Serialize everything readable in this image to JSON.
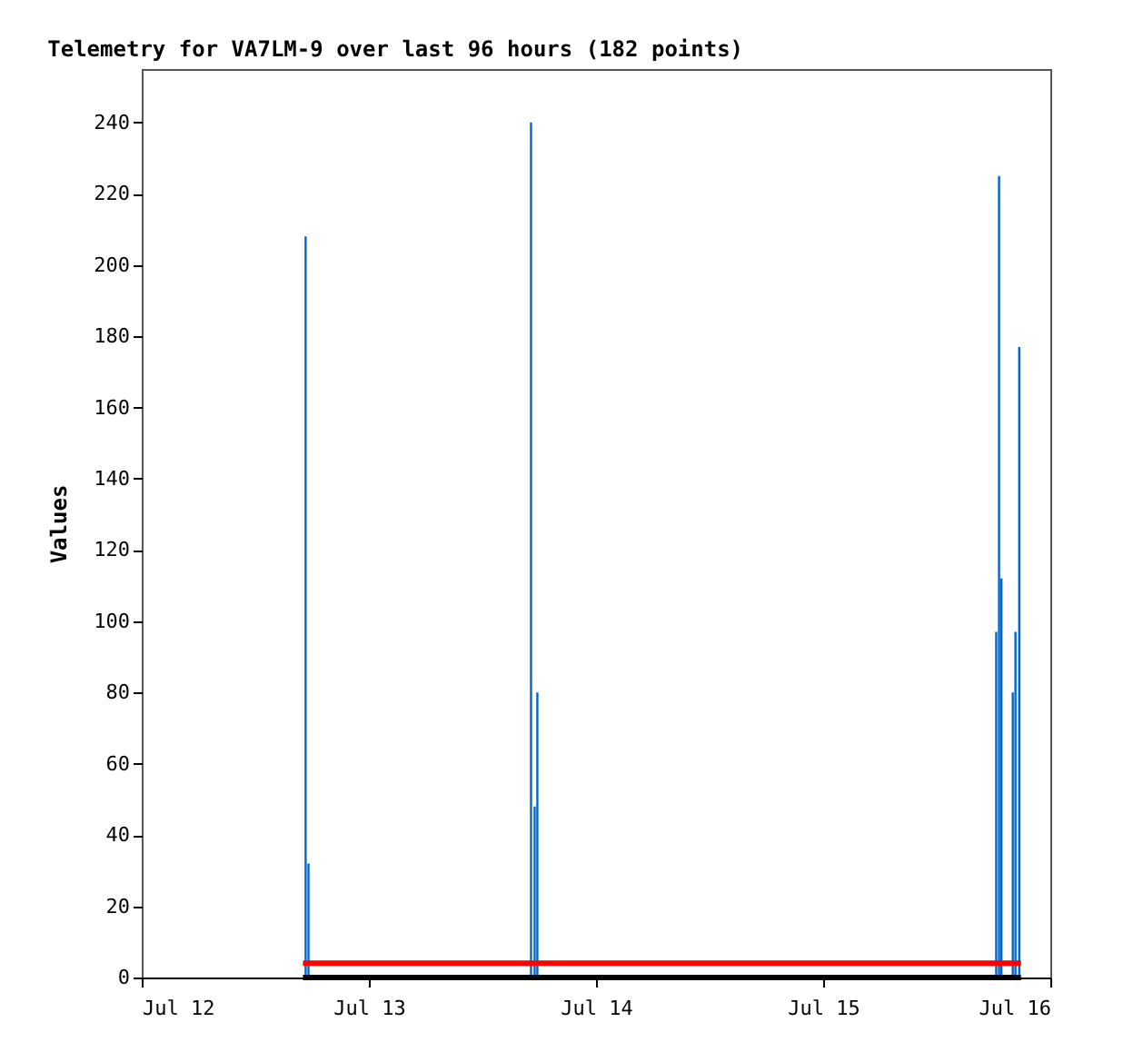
{
  "chart_data": {
    "type": "line",
    "title": "Telemetry for VA7LM-9 over last 96 hours (182 points)",
    "ylabel": "Values",
    "series": [
      {
        "type": "bar",
        "color": "#0066cc",
        "x": [
          "--07-12T17:19",
          "--07-12T17:37",
          "--07-13T17:08",
          "--07-13T17:31",
          "--07-13T17:48",
          "--07-15T18:17",
          "--07-15T18:35",
          "--07-15T18:50",
          "--07-15T20:02",
          "--07-15T20:19",
          "--07-15T20:43"
        ],
        "values": [
          208,
          32,
          240,
          48,
          80,
          97,
          225,
          112,
          80,
          97,
          177
        ]
      },
      {
        "color": "#000000",
        "x": [
          "--07-12T17:02",
          "--07-15T20:54"
        ],
        "values": [
          0,
          0
        ]
      },
      {
        "color": "#ff0000",
        "x": [
          "--07-12T17:02",
          "--07-15T20:54"
        ],
        "values": [
          4,
          4
        ]
      }
    ],
    "xlim": [
      "--07-12",
      "--07-16"
    ],
    "xticks": [
      {
        "value": "--07-12",
        "label": "Jul 12"
      },
      {
        "value": "--07-13",
        "label": "Jul 13"
      },
      {
        "value": "--07-14",
        "label": "Jul 14"
      },
      {
        "value": "--07-15",
        "label": "Jul 15"
      },
      {
        "value": "--07-16",
        "label": "Jul 16"
      }
    ],
    "ylim": [
      0,
      255
    ],
    "yticks": [
      0,
      20,
      40,
      60,
      80,
      100,
      120,
      140,
      160,
      180,
      200,
      220,
      240
    ],
    "grid": false
  }
}
